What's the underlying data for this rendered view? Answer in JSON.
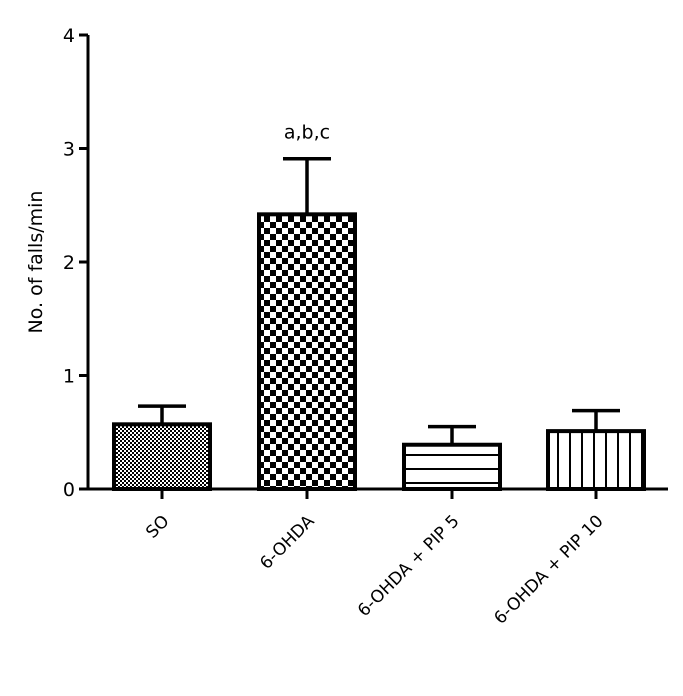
{
  "chart_data": {
    "type": "bar",
    "title": "",
    "xlabel": "",
    "ylabel": "No. of falls/min",
    "ylim": [
      0,
      4
    ],
    "yticks": [
      "0",
      "1",
      "2",
      "3",
      "4"
    ],
    "categories": [
      "SO",
      "6-OHDA",
      "6-OHDA + PIP 5",
      "6-OHDA + PIP 10"
    ],
    "values": [
      0.57,
      2.42,
      0.39,
      0.51
    ],
    "errors": [
      0.16,
      0.49,
      0.16,
      0.18
    ],
    "patterns": [
      "fine-crosshatch",
      "checkerboard",
      "horizontal-lines",
      "vertical-lines"
    ],
    "annotations": [
      {
        "category": "6-OHDA",
        "text": "a,b,c"
      }
    ],
    "grid": false,
    "legend": "none"
  }
}
